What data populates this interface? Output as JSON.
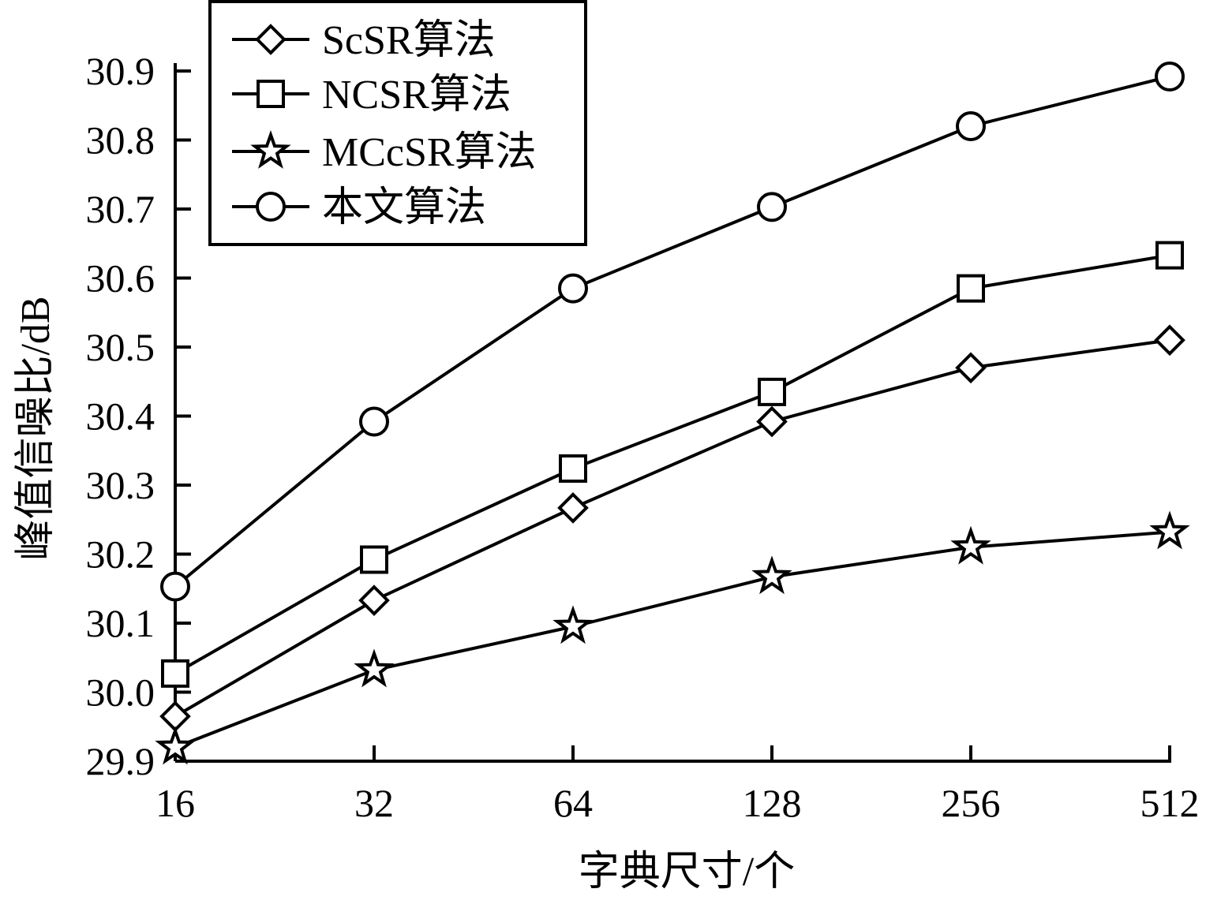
{
  "chart_data": {
    "type": "line",
    "xlabel": "字典尺寸/个",
    "ylabel": "峰值信噪比/dB",
    "x": [
      16,
      32,
      64,
      128,
      256,
      512
    ],
    "x_tick_labels": [
      "16",
      "32",
      "64",
      "128",
      "256",
      "512"
    ],
    "x_scale": "log2",
    "ylim": [
      29.9,
      30.9
    ],
    "y_ticks": [
      29.9,
      30.0,
      30.1,
      30.2,
      30.3,
      30.4,
      30.5,
      30.6,
      30.7,
      30.8,
      30.9
    ],
    "y_tick_labels": [
      "29.9",
      "30.0",
      "30.1",
      "30.2",
      "30.3",
      "30.4",
      "30.5",
      "30.6",
      "30.7",
      "30.8",
      "30.9"
    ],
    "grid": false,
    "legend_position": "top-left",
    "series": [
      {
        "name": "ScSR算法",
        "marker": "diamond",
        "values": [
          29.965,
          30.133,
          30.267,
          30.392,
          30.47,
          30.51
        ]
      },
      {
        "name": "NCSR算法",
        "marker": "square",
        "values": [
          30.027,
          30.192,
          30.324,
          30.435,
          30.585,
          30.633
        ]
      },
      {
        "name": "MCcSR算法",
        "marker": "star",
        "values": [
          29.92,
          30.032,
          30.095,
          30.167,
          30.21,
          30.232
        ]
      },
      {
        "name": "本文算法",
        "marker": "circle",
        "values": [
          30.153,
          30.392,
          30.585,
          30.703,
          30.82,
          30.892
        ]
      }
    ]
  }
}
